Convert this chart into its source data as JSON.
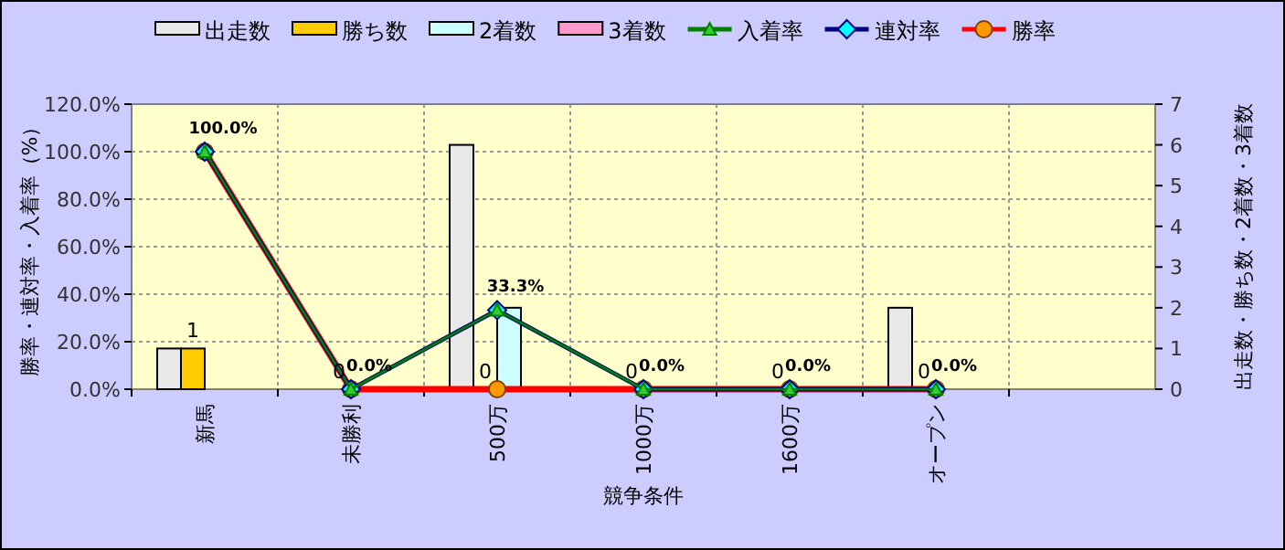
{
  "chart_data": {
    "type": "bar",
    "xlabel": "競争条件",
    "ylabel": "勝率・連対率・入着率（%）",
    "y2label": "出走数・勝ち数・2着数・3着数",
    "categories": [
      "新馬",
      "未勝利",
      "500万",
      "1000万",
      "1600万",
      "オープン",
      null
    ],
    "series": [
      {
        "name": "出走数",
        "axis": "y2",
        "color": "#e8e8e8",
        "values": [
          1,
          0,
          6,
          0,
          0,
          2,
          null
        ]
      },
      {
        "name": "勝ち数",
        "axis": "y2",
        "color": "#ffcc00",
        "values": [
          1,
          0,
          0,
          0,
          0,
          0,
          null
        ],
        "value_labels": [
          "1",
          "0",
          "0",
          "0",
          "0",
          "0",
          null
        ]
      },
      {
        "name": "2着数",
        "axis": "y2",
        "color": "#ccffff",
        "values": [
          0,
          0,
          2,
          0,
          0,
          0,
          null
        ]
      },
      {
        "name": "3着数",
        "axis": "y2",
        "color": "#ff99cc",
        "values": [
          0,
          0,
          0,
          0,
          0,
          0,
          null
        ]
      },
      {
        "name": "入着率",
        "type": "line",
        "color": "#008000",
        "marker": "triangle",
        "values": [
          100,
          0,
          33.3,
          0,
          0,
          0,
          null
        ]
      },
      {
        "name": "連対率",
        "type": "line",
        "color": "#000080",
        "marker": "diamond",
        "values": [
          100,
          0,
          33.3,
          0,
          0,
          0,
          null
        ],
        "value_labels": [
          null,
          null,
          "33.3%",
          null,
          null,
          null,
          null
        ]
      },
      {
        "name": "勝率",
        "type": "line",
        "color": "#ff0000",
        "marker": "circle",
        "values": [
          100,
          0,
          0,
          0,
          0,
          0,
          null
        ],
        "value_labels": [
          "100.0%",
          "0.0%",
          null,
          "0.0%",
          "0.0%",
          "0.0%",
          null
        ]
      }
    ],
    "ylim": [
      0,
      120
    ],
    "yticks": [
      {
        "value": 0,
        "label": "0.0%"
      },
      {
        "value": 20,
        "label": "20.0%"
      },
      {
        "value": 40,
        "label": "40.0%"
      },
      {
        "value": 60,
        "label": "60.0%"
      },
      {
        "value": 80,
        "label": "80.0%"
      },
      {
        "value": 100,
        "label": "100.0%"
      },
      {
        "value": 120,
        "label": "120.0%"
      }
    ],
    "y2lim": [
      0,
      7
    ],
    "y2ticks": [
      0,
      1,
      2,
      3,
      4,
      5,
      6,
      7
    ],
    "grid": true,
    "legend": "top"
  }
}
